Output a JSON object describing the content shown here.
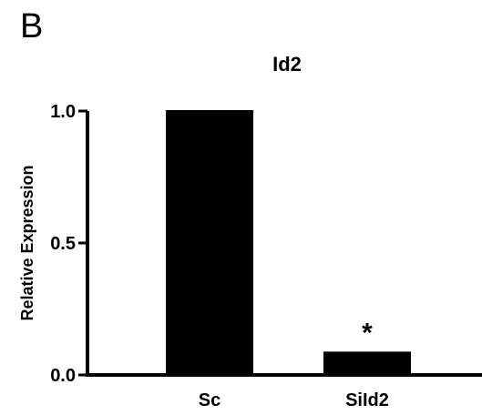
{
  "panel_label": "B",
  "chart_data": {
    "type": "bar",
    "title": "Id2",
    "xlabel": "",
    "ylabel": "Relative Expression",
    "categories": [
      "Sc",
      "SiId2"
    ],
    "values": [
      1.0,
      0.085
    ],
    "ylim": [
      0,
      1.0
    ],
    "yticks": [
      "0.0",
      "0.5",
      "1.0"
    ],
    "annotations": [
      {
        "category": "SiId2",
        "text": "*"
      }
    ],
    "grid": false,
    "colors": {
      "bar": "#000000",
      "axis": "#000000"
    }
  }
}
